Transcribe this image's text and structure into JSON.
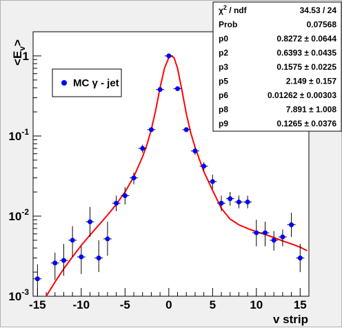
{
  "chart_data": {
    "type": "scatter",
    "title": "",
    "xlabel": "v strip",
    "ylabel": "<E_v>",
    "ylabel_main": "<E",
    "ylabel_sub": "v",
    "ylabel_close": ">",
    "xlim": [
      -15.5,
      16.0
    ],
    "ylim": [
      0.001,
      2.0
    ],
    "yscale": "log",
    "x_ticks": [
      -15,
      -10,
      -5,
      0,
      5,
      10,
      15
    ],
    "x_tick_labels": [
      "-15",
      "-10",
      "-5",
      "0",
      "5",
      "10",
      "15"
    ],
    "y_major_ticks": [
      {
        "value": 0.001,
        "base": "10",
        "exp": "-3"
      },
      {
        "value": 0.01,
        "base": "10",
        "exp": "-2"
      },
      {
        "value": 0.1,
        "base": "10",
        "exp": "-1"
      },
      {
        "value": 1,
        "base": "1",
        "exp": ""
      }
    ],
    "marker_color": "#0000ff",
    "fit_color": "#ff0000",
    "series": [
      {
        "name": "MC γ - jet",
        "points": [
          {
            "x": -15,
            "y": 0.00165,
            "ylo": 0.00105,
            "yhi": 0.0025
          },
          {
            "x": -13,
            "y": 0.0026,
            "ylo": 0.0016,
            "yhi": 0.0035
          },
          {
            "x": -12,
            "y": 0.0028,
            "ylo": 0.0018,
            "yhi": 0.0045
          },
          {
            "x": -11,
            "y": 0.005,
            "ylo": 0.0031,
            "yhi": 0.0075
          },
          {
            "x": -10,
            "y": 0.0031,
            "ylo": 0.0019,
            "yhi": 0.0042
          },
          {
            "x": -9,
            "y": 0.0085,
            "ylo": 0.0055,
            "yhi": 0.013
          },
          {
            "x": -8,
            "y": 0.003,
            "ylo": 0.002,
            "yhi": 0.005
          },
          {
            "x": -7,
            "y": 0.0052,
            "ylo": 0.0032,
            "yhi": 0.0085
          },
          {
            "x": -6,
            "y": 0.0145,
            "ylo": 0.0115,
            "yhi": 0.018
          },
          {
            "x": -5,
            "y": 0.018,
            "ylo": 0.014,
            "yhi": 0.023
          },
          {
            "x": -4,
            "y": 0.03,
            "ylo": 0.025,
            "yhi": 0.035
          },
          {
            "x": -3,
            "y": 0.07,
            "ylo": 0.062,
            "yhi": 0.078
          },
          {
            "x": -2,
            "y": 0.12,
            "ylo": 0.112,
            "yhi": 0.128
          },
          {
            "x": -1,
            "y": 0.38,
            "ylo": 0.37,
            "yhi": 0.39
          },
          {
            "x": 0,
            "y": 1.0,
            "ylo": 0.99,
            "yhi": 1.01
          },
          {
            "x": 1,
            "y": 0.39,
            "ylo": 0.38,
            "yhi": 0.4
          },
          {
            "x": 2,
            "y": 0.12,
            "ylo": 0.112,
            "yhi": 0.128
          },
          {
            "x": 3,
            "y": 0.065,
            "ylo": 0.058,
            "yhi": 0.072
          },
          {
            "x": 4,
            "y": 0.042,
            "ylo": 0.037,
            "yhi": 0.047
          },
          {
            "x": 5,
            "y": 0.027,
            "ylo": 0.022,
            "yhi": 0.033
          },
          {
            "x": 6,
            "y": 0.0145,
            "ylo": 0.0115,
            "yhi": 0.018
          },
          {
            "x": 7,
            "y": 0.0165,
            "ylo": 0.0135,
            "yhi": 0.02
          },
          {
            "x": 8,
            "y": 0.015,
            "ylo": 0.0125,
            "yhi": 0.018
          },
          {
            "x": 9,
            "y": 0.015,
            "ylo": 0.0125,
            "yhi": 0.018
          },
          {
            "x": 10,
            "y": 0.0062,
            "ylo": 0.0042,
            "yhi": 0.009
          },
          {
            "x": 11,
            "y": 0.0062,
            "ylo": 0.0042,
            "yhi": 0.0085
          },
          {
            "x": 12,
            "y": 0.005,
            "ylo": 0.0037,
            "yhi": 0.0065
          },
          {
            "x": 13,
            "y": 0.0055,
            "ylo": 0.0042,
            "yhi": 0.0068
          },
          {
            "x": 14,
            "y": 0.0078,
            "ylo": 0.0055,
            "yhi": 0.011
          },
          {
            "x": 15,
            "y": 0.003,
            "ylo": 0.002,
            "yhi": 0.0045
          }
        ]
      }
    ],
    "fit_curve": {
      "x": [
        -14.5,
        -14,
        -13,
        -12,
        -11,
        -10,
        -9,
        -8,
        -7,
        -6,
        -5,
        -4,
        -3,
        -2.5,
        -2,
        -1.5,
        -1,
        -0.5,
        0,
        0.3,
        0.6,
        1,
        1.5,
        2,
        2.5,
        3,
        4,
        5,
        6,
        7,
        8,
        9,
        10,
        11,
        12,
        13,
        14,
        15,
        15.8
      ],
      "y": [
        0.00085,
        0.001,
        0.0015,
        0.0022,
        0.0031,
        0.0043,
        0.0058,
        0.0077,
        0.0103,
        0.014,
        0.02,
        0.031,
        0.055,
        0.078,
        0.12,
        0.21,
        0.4,
        0.7,
        0.95,
        1.0,
        0.95,
        0.7,
        0.37,
        0.19,
        0.11,
        0.072,
        0.036,
        0.021,
        0.0125,
        0.0092,
        0.0078,
        0.007,
        0.0064,
        0.0059,
        0.0054,
        0.0049,
        0.0045,
        0.0041,
        0.0037
      ]
    },
    "legend": {
      "position": "top-left",
      "label": "MC γ - jet"
    }
  },
  "stats_box": {
    "rows": [
      {
        "name_main": "χ",
        "name_sup": "2",
        "name_rest": " / ndf",
        "value": "34.53 / 24"
      },
      {
        "name_main": "Prob",
        "name_sup": "",
        "name_rest": "",
        "value": "0.07568"
      },
      {
        "name_main": "p0",
        "name_sup": "",
        "name_rest": "",
        "value": "0.8272 ± 0.0644"
      },
      {
        "name_main": "p2",
        "name_sup": "",
        "name_rest": "",
        "value": "0.6393 ± 0.0435"
      },
      {
        "name_main": "p3",
        "name_sup": "",
        "name_rest": "",
        "value": "0.1575 ± 0.0225"
      },
      {
        "name_main": "p5",
        "name_sup": "",
        "name_rest": "",
        "value": "2.149 ± 0.157"
      },
      {
        "name_main": "p6",
        "name_sup": "",
        "name_rest": "",
        "value": "0.01262 ± 0.00303"
      },
      {
        "name_main": "p8",
        "name_sup": "",
        "name_rest": "",
        "value": "7.891 ± 1.008"
      },
      {
        "name_main": "p9",
        "name_sup": "",
        "name_rest": "",
        "value": "0.1265 ± 0.0376"
      }
    ]
  }
}
